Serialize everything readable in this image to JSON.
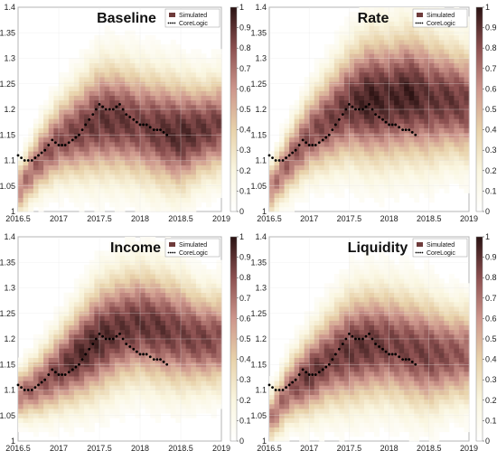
{
  "legend": {
    "simulated": "Simulated",
    "corelogic": "CoreLogic"
  },
  "colorbar_ticks": [
    "0",
    "0.1",
    "0.2",
    "0.3",
    "0.4",
    "0.5",
    "0.6",
    "0.7",
    "0.8",
    "0.9",
    "1"
  ],
  "colors": {
    "low": "#ffffff",
    "mid": "#c99a8c",
    "high": "#2a1212",
    "corelogic": "#000000",
    "grid": "#e6e6e6"
  },
  "chart_data": [
    {
      "type": "heatmap",
      "title": "Baseline",
      "x_ticks": [
        "2016.5",
        "2017",
        "2017.5",
        "2018",
        "2018.5",
        "2019"
      ],
      "y_ticks": [
        "1",
        "1.05",
        "1.1",
        "1.15",
        "1.2",
        "1.25",
        "1.3",
        "1.35",
        "1.4"
      ],
      "xlim": [
        2016.5,
        2019
      ],
      "ylim": [
        1.0,
        1.4
      ],
      "grid": true,
      "legend_position": "top-right",
      "density_ridge": {
        "x": [
          2016.5,
          2016.75,
          2017.0,
          2017.25,
          2017.5,
          2017.75,
          2018.0,
          2018.25,
          2018.5,
          2018.75,
          2019.0
        ],
        "center": [
          1.04,
          1.1,
          1.14,
          1.16,
          1.18,
          1.18,
          1.17,
          1.16,
          1.15,
          1.16,
          1.17
        ],
        "spread": [
          0.03,
          0.04,
          0.05,
          0.06,
          0.07,
          0.07,
          0.07,
          0.07,
          0.07,
          0.06,
          0.06
        ],
        "peak": [
          0.6,
          0.7,
          0.75,
          0.8,
          0.85,
          0.85,
          0.8,
          0.85,
          0.9,
          0.85,
          0.8
        ]
      },
      "corelogic": {
        "x": [
          2016.5,
          2016.58,
          2016.67,
          2016.75,
          2016.83,
          2016.92,
          2017.0,
          2017.08,
          2017.17,
          2017.25,
          2017.33,
          2017.42,
          2017.5,
          2017.58,
          2017.67,
          2017.75,
          2017.83,
          2017.92,
          2018.0,
          2018.08,
          2018.17,
          2018.25,
          2018.33
        ],
        "y": [
          1.11,
          1.1,
          1.1,
          1.11,
          1.12,
          1.14,
          1.13,
          1.13,
          1.14,
          1.15,
          1.17,
          1.19,
          1.21,
          1.2,
          1.2,
          1.21,
          1.19,
          1.18,
          1.17,
          1.17,
          1.16,
          1.16,
          1.15
        ]
      }
    },
    {
      "type": "heatmap",
      "title": "Rate",
      "x_ticks": [
        "2016.5",
        "2017",
        "2017.5",
        "2018",
        "2018.5",
        "2019"
      ],
      "y_ticks": [
        "1",
        "1.05",
        "1.1",
        "1.15",
        "1.2",
        "1.25",
        "1.3",
        "1.35",
        "1.4"
      ],
      "xlim": [
        2016.5,
        2019
      ],
      "ylim": [
        1.0,
        1.4
      ],
      "grid": true,
      "legend_position": "top-right",
      "density_ridge": {
        "x": [
          2016.5,
          2016.75,
          2017.0,
          2017.25,
          2017.5,
          2017.75,
          2018.0,
          2018.25,
          2018.5,
          2018.75,
          2019.0
        ],
        "center": [
          1.04,
          1.1,
          1.15,
          1.18,
          1.21,
          1.22,
          1.22,
          1.23,
          1.22,
          1.22,
          1.21
        ],
        "spread": [
          0.03,
          0.04,
          0.05,
          0.06,
          0.07,
          0.08,
          0.08,
          0.08,
          0.08,
          0.07,
          0.07
        ],
        "peak": [
          0.6,
          0.7,
          0.75,
          0.8,
          0.85,
          0.95,
          0.9,
          0.95,
          0.85,
          0.85,
          0.8
        ]
      },
      "corelogic": {
        "x": [
          2016.5,
          2016.58,
          2016.67,
          2016.75,
          2016.83,
          2016.92,
          2017.0,
          2017.08,
          2017.17,
          2017.25,
          2017.33,
          2017.42,
          2017.5,
          2017.58,
          2017.67,
          2017.75,
          2017.83,
          2017.92,
          2018.0,
          2018.08,
          2018.17,
          2018.25,
          2018.33
        ],
        "y": [
          1.11,
          1.1,
          1.1,
          1.11,
          1.12,
          1.14,
          1.13,
          1.13,
          1.14,
          1.15,
          1.17,
          1.19,
          1.21,
          1.2,
          1.2,
          1.21,
          1.19,
          1.18,
          1.17,
          1.17,
          1.16,
          1.16,
          1.15
        ]
      }
    },
    {
      "type": "heatmap",
      "title": "Income",
      "x_ticks": [
        "2016.5",
        "2017",
        "2017.5",
        "2018",
        "2018.5",
        "2019"
      ],
      "y_ticks": [
        "1",
        "1.05",
        "1.1",
        "1.15",
        "1.2",
        "1.25",
        "1.3",
        "1.35",
        "1.4"
      ],
      "xlim": [
        2016.5,
        2019
      ],
      "ylim": [
        1.0,
        1.4
      ],
      "grid": true,
      "legend_position": "top-right",
      "density_ridge": {
        "x": [
          2016.5,
          2016.75,
          2017.0,
          2017.25,
          2017.5,
          2017.75,
          2018.0,
          2018.25,
          2018.5,
          2018.75,
          2019.0
        ],
        "center": [
          1.09,
          1.11,
          1.14,
          1.17,
          1.2,
          1.22,
          1.23,
          1.22,
          1.21,
          1.2,
          1.2
        ],
        "spread": [
          0.03,
          0.04,
          0.05,
          0.06,
          0.07,
          0.07,
          0.07,
          0.07,
          0.07,
          0.06,
          0.06
        ],
        "peak": [
          0.65,
          0.7,
          0.8,
          0.9,
          0.9,
          0.85,
          0.85,
          0.85,
          0.8,
          0.8,
          0.75
        ]
      },
      "corelogic": {
        "x": [
          2016.5,
          2016.58,
          2016.67,
          2016.75,
          2016.83,
          2016.92,
          2017.0,
          2017.08,
          2017.17,
          2017.25,
          2017.33,
          2017.42,
          2017.5,
          2017.58,
          2017.67,
          2017.75,
          2017.83,
          2017.92,
          2018.0,
          2018.08,
          2018.17,
          2018.25,
          2018.33
        ],
        "y": [
          1.11,
          1.1,
          1.1,
          1.11,
          1.12,
          1.14,
          1.13,
          1.13,
          1.14,
          1.15,
          1.17,
          1.19,
          1.21,
          1.2,
          1.2,
          1.21,
          1.19,
          1.18,
          1.17,
          1.17,
          1.16,
          1.16,
          1.15
        ]
      }
    },
    {
      "type": "heatmap",
      "title": "Liquidity",
      "x_ticks": [
        "2016.5",
        "2017",
        "2017.5",
        "2018",
        "2018.5",
        "2019"
      ],
      "y_ticks": [
        "1",
        "1.05",
        "1.1",
        "1.15",
        "1.2",
        "1.25",
        "1.3",
        "1.35",
        "1.4"
      ],
      "xlim": [
        2016.5,
        2019
      ],
      "ylim": [
        1.0,
        1.4
      ],
      "grid": true,
      "legend_position": "top-right",
      "density_ridge": {
        "x": [
          2016.5,
          2016.75,
          2017.0,
          2017.25,
          2017.5,
          2017.75,
          2018.0,
          2018.25,
          2018.5,
          2018.75,
          2019.0
        ],
        "center": [
          1.04,
          1.1,
          1.13,
          1.16,
          1.18,
          1.19,
          1.19,
          1.18,
          1.17,
          1.17,
          1.17
        ],
        "spread": [
          0.03,
          0.04,
          0.05,
          0.06,
          0.07,
          0.07,
          0.07,
          0.07,
          0.07,
          0.06,
          0.06
        ],
        "peak": [
          0.6,
          0.7,
          0.85,
          0.8,
          0.85,
          0.85,
          0.8,
          0.8,
          0.8,
          0.75,
          0.7
        ]
      },
      "corelogic": {
        "x": [
          2016.5,
          2016.58,
          2016.67,
          2016.75,
          2016.83,
          2016.92,
          2017.0,
          2017.08,
          2017.17,
          2017.25,
          2017.33,
          2017.42,
          2017.5,
          2017.58,
          2017.67,
          2017.75,
          2017.83,
          2017.92,
          2018.0,
          2018.08,
          2018.17,
          2018.25,
          2018.33
        ],
        "y": [
          1.11,
          1.1,
          1.1,
          1.11,
          1.12,
          1.14,
          1.13,
          1.13,
          1.14,
          1.15,
          1.17,
          1.19,
          1.21,
          1.2,
          1.2,
          1.21,
          1.19,
          1.18,
          1.17,
          1.17,
          1.16,
          1.16,
          1.15
        ]
      }
    }
  ]
}
